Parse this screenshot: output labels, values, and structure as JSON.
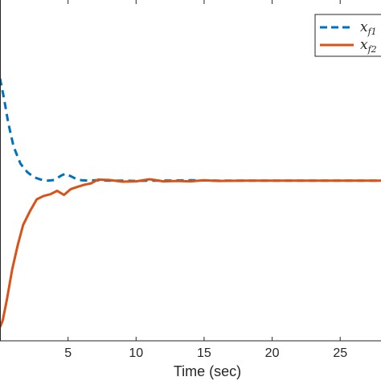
{
  "chart_data": {
    "type": "line",
    "xlabel": "Time (sec)",
    "xlim": [
      0,
      28
    ],
    "ylim": [
      0,
      1
    ],
    "x_ticks": [
      5,
      10,
      15,
      20,
      25
    ],
    "grid": false,
    "legend_position": "top-right",
    "series": [
      {
        "name": "x_{f1}",
        "legend_main": "x",
        "legend_sub": "f1",
        "style": "dashed",
        "color": "#0072BD",
        "x": [
          0,
          0.3,
          0.6,
          1,
          1.5,
          2,
          2.5,
          3,
          3.5,
          4,
          4.5,
          4.8,
          5.2,
          5.6,
          6,
          6.5,
          7,
          8,
          9,
          10,
          11,
          12,
          14,
          16,
          18,
          20,
          22,
          24,
          26,
          28
        ],
        "y": [
          0.77,
          0.71,
          0.64,
          0.57,
          0.52,
          0.495,
          0.48,
          0.473,
          0.47,
          0.472,
          0.485,
          0.49,
          0.483,
          0.475,
          0.471,
          0.47,
          0.471,
          0.47,
          0.47,
          0.469,
          0.47,
          0.47,
          0.471,
          0.47,
          0.47,
          0.47,
          0.47,
          0.47,
          0.47,
          0.47
        ]
      },
      {
        "name": "x_{f2}",
        "legend_main": "x",
        "legend_sub": "f2",
        "style": "solid",
        "color": "#D95319",
        "x": [
          0,
          0.2,
          0.5,
          0.9,
          1.3,
          1.7,
          2.2,
          2.7,
          3.2,
          3.7,
          4.2,
          4.7,
          5.2,
          5.7,
          6.2,
          6.7,
          7.2,
          8,
          9,
          10,
          11,
          12,
          13,
          14,
          15,
          16,
          18,
          20,
          22,
          24,
          26,
          28
        ],
        "y": [
          0.04,
          0.06,
          0.12,
          0.21,
          0.28,
          0.34,
          0.38,
          0.415,
          0.425,
          0.43,
          0.44,
          0.428,
          0.445,
          0.452,
          0.458,
          0.462,
          0.473,
          0.472,
          0.467,
          0.468,
          0.474,
          0.468,
          0.469,
          0.468,
          0.471,
          0.469,
          0.47,
          0.47,
          0.47,
          0.47,
          0.47,
          0.47
        ]
      }
    ]
  }
}
